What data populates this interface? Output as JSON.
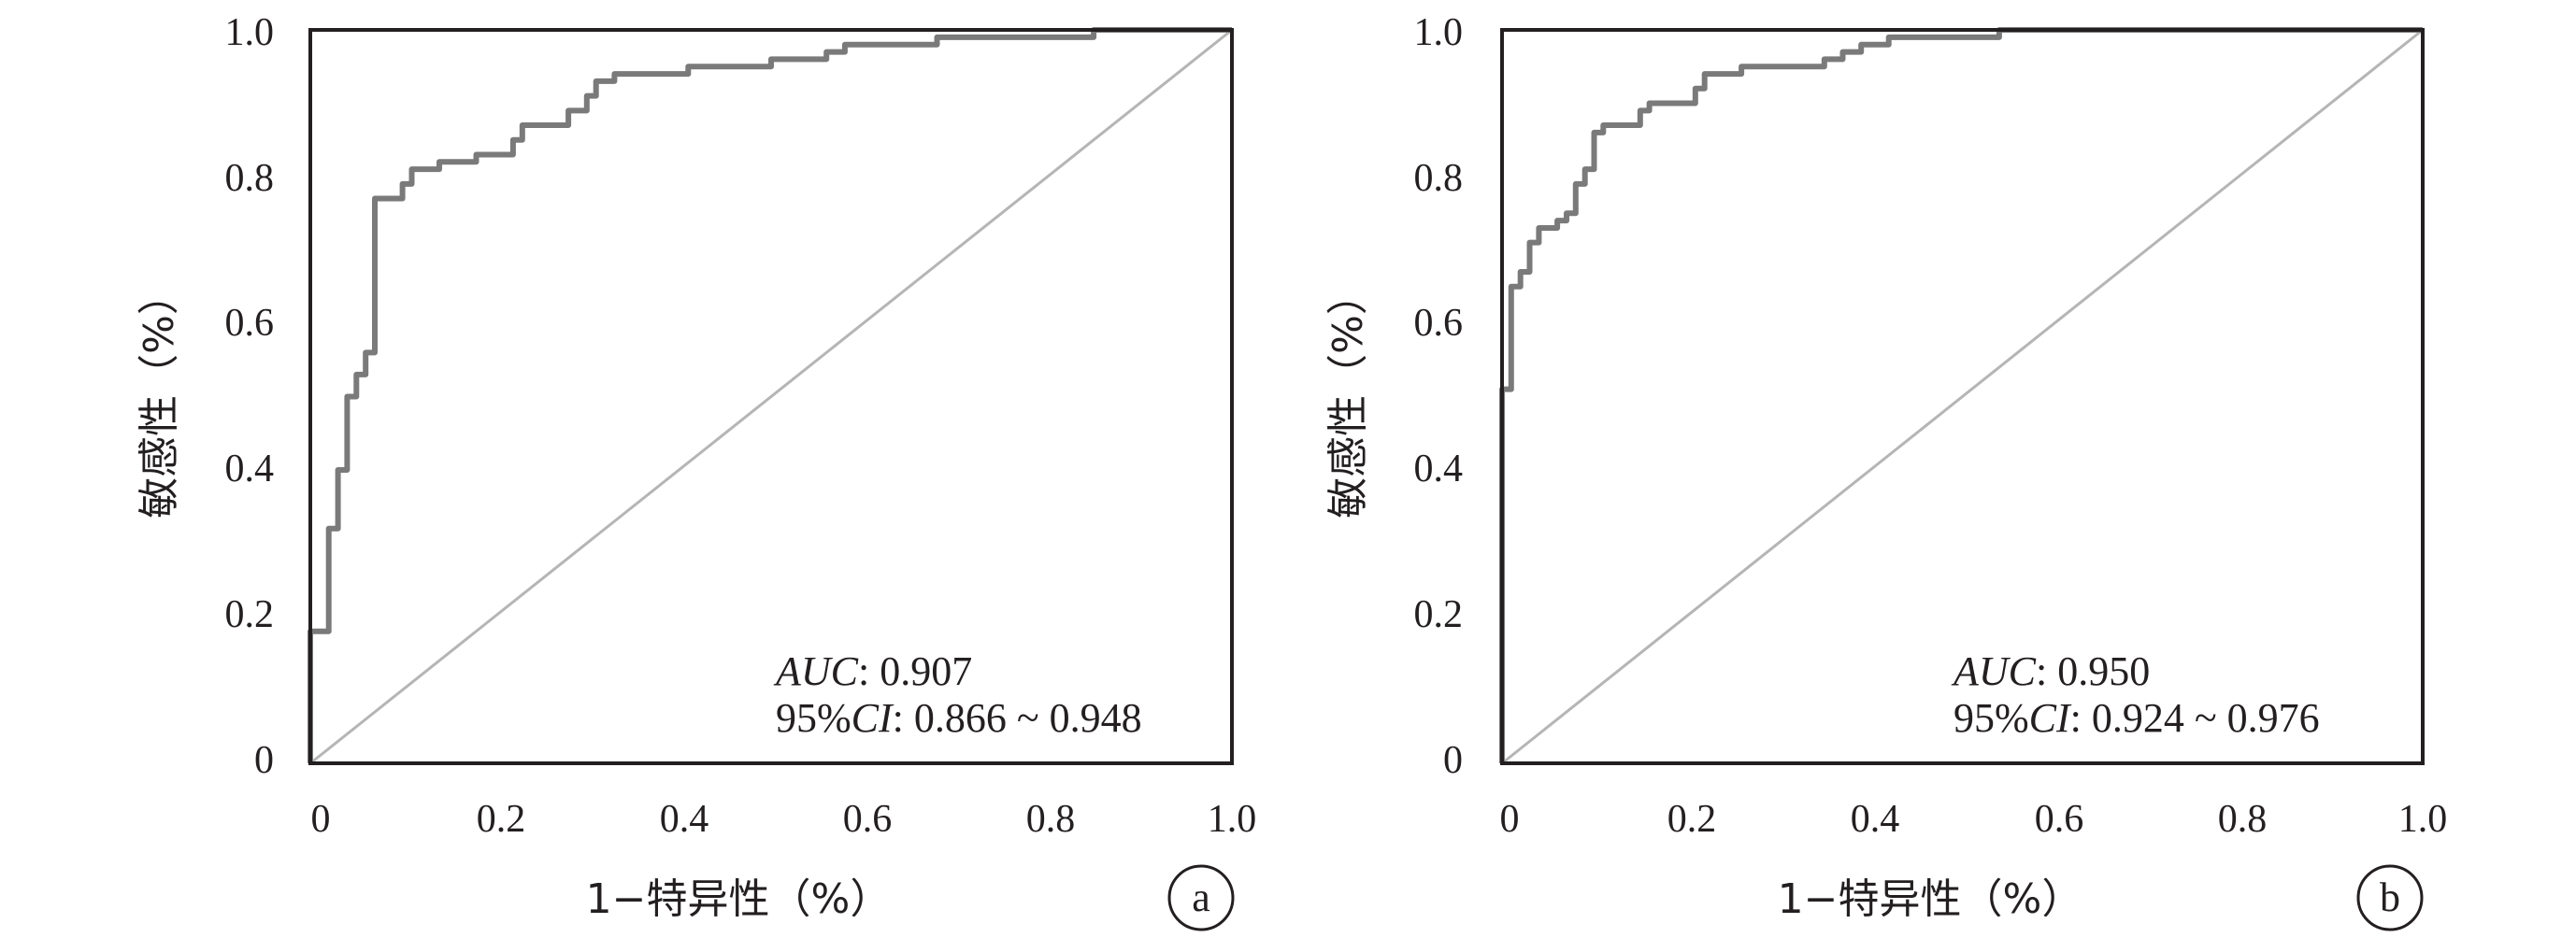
{
  "chart_data": [
    {
      "type": "line",
      "panel": "a",
      "xlabel": "1−特异性（%）",
      "ylabel": "敏感性（%）",
      "xlim": [
        0,
        1
      ],
      "ylim": [
        0,
        1
      ],
      "x_ticks": [
        "0",
        "0.2",
        "0.4",
        "0.6",
        "0.8",
        "1.0"
      ],
      "y_ticks": [
        "0",
        "0.2",
        "0.4",
        "0.6",
        "0.8",
        "1.0"
      ],
      "annotations": {
        "auc_label": "AUC",
        "auc_value": ": 0.907",
        "ci_prefix": "95%",
        "ci_label": "CI",
        "ci_value": ": 0.866 ~ 0.948"
      },
      "reference_line": [
        [
          0,
          0
        ],
        [
          1,
          1
        ]
      ],
      "series": [
        {
          "points": [
            [
              0,
              0
            ],
            [
              0,
              0.18
            ],
            [
              0.02,
              0.18
            ],
            [
              0.02,
              0.32
            ],
            [
              0.03,
              0.32
            ],
            [
              0.03,
              0.4
            ],
            [
              0.04,
              0.4
            ],
            [
              0.04,
              0.5
            ],
            [
              0.05,
              0.5
            ],
            [
              0.05,
              0.53
            ],
            [
              0.06,
              0.53
            ],
            [
              0.06,
              0.56
            ],
            [
              0.07,
              0.56
            ],
            [
              0.07,
              0.77
            ],
            [
              0.1,
              0.77
            ],
            [
              0.1,
              0.79
            ],
            [
              0.11,
              0.79
            ],
            [
              0.11,
              0.81
            ],
            [
              0.14,
              0.81
            ],
            [
              0.14,
              0.82
            ],
            [
              0.18,
              0.82
            ],
            [
              0.18,
              0.83
            ],
            [
              0.22,
              0.83
            ],
            [
              0.22,
              0.85
            ],
            [
              0.23,
              0.85
            ],
            [
              0.23,
              0.87
            ],
            [
              0.28,
              0.87
            ],
            [
              0.28,
              0.89
            ],
            [
              0.3,
              0.89
            ],
            [
              0.3,
              0.91
            ],
            [
              0.31,
              0.91
            ],
            [
              0.31,
              0.93
            ],
            [
              0.33,
              0.93
            ],
            [
              0.33,
              0.94
            ],
            [
              0.41,
              0.94
            ],
            [
              0.41,
              0.95
            ],
            [
              0.5,
              0.95
            ],
            [
              0.5,
              0.96
            ],
            [
              0.56,
              0.96
            ],
            [
              0.56,
              0.97
            ],
            [
              0.58,
              0.97
            ],
            [
              0.58,
              0.98
            ],
            [
              0.68,
              0.98
            ],
            [
              0.68,
              0.99
            ],
            [
              0.85,
              0.99
            ],
            [
              0.85,
              1.0
            ],
            [
              1.0,
              1.0
            ]
          ]
        }
      ]
    },
    {
      "type": "line",
      "panel": "b",
      "xlabel": "1−特异性（%）",
      "ylabel": "敏感性（%）",
      "xlim": [
        0,
        1
      ],
      "ylim": [
        0,
        1
      ],
      "x_ticks": [
        "0",
        "0.2",
        "0.4",
        "0.6",
        "0.8",
        "1.0"
      ],
      "y_ticks": [
        "0",
        "0.2",
        "0.4",
        "0.6",
        "0.8",
        "1.0"
      ],
      "annotations": {
        "auc_label": "AUC",
        "auc_value": ": 0.950",
        "ci_prefix": "95%",
        "ci_label": "CI",
        "ci_value": ": 0.924 ~ 0.976"
      },
      "reference_line": [
        [
          0,
          0
        ],
        [
          1,
          1
        ]
      ],
      "series": [
        {
          "points": [
            [
              0,
              0
            ],
            [
              0,
              0.51
            ],
            [
              0.01,
              0.51
            ],
            [
              0.01,
              0.65
            ],
            [
              0.02,
              0.65
            ],
            [
              0.02,
              0.67
            ],
            [
              0.03,
              0.67
            ],
            [
              0.03,
              0.71
            ],
            [
              0.04,
              0.71
            ],
            [
              0.04,
              0.73
            ],
            [
              0.06,
              0.73
            ],
            [
              0.06,
              0.74
            ],
            [
              0.07,
              0.74
            ],
            [
              0.07,
              0.75
            ],
            [
              0.08,
              0.75
            ],
            [
              0.08,
              0.79
            ],
            [
              0.09,
              0.79
            ],
            [
              0.09,
              0.81
            ],
            [
              0.1,
              0.81
            ],
            [
              0.1,
              0.86
            ],
            [
              0.11,
              0.86
            ],
            [
              0.11,
              0.87
            ],
            [
              0.15,
              0.87
            ],
            [
              0.15,
              0.89
            ],
            [
              0.16,
              0.89
            ],
            [
              0.16,
              0.9
            ],
            [
              0.21,
              0.9
            ],
            [
              0.21,
              0.92
            ],
            [
              0.22,
              0.92
            ],
            [
              0.22,
              0.94
            ],
            [
              0.26,
              0.94
            ],
            [
              0.26,
              0.95
            ],
            [
              0.35,
              0.95
            ],
            [
              0.35,
              0.96
            ],
            [
              0.37,
              0.96
            ],
            [
              0.37,
              0.97
            ],
            [
              0.39,
              0.97
            ],
            [
              0.39,
              0.98
            ],
            [
              0.42,
              0.98
            ],
            [
              0.42,
              0.99
            ],
            [
              0.54,
              0.99
            ],
            [
              0.54,
              1.0
            ],
            [
              1.0,
              1.0
            ]
          ]
        }
      ]
    }
  ]
}
